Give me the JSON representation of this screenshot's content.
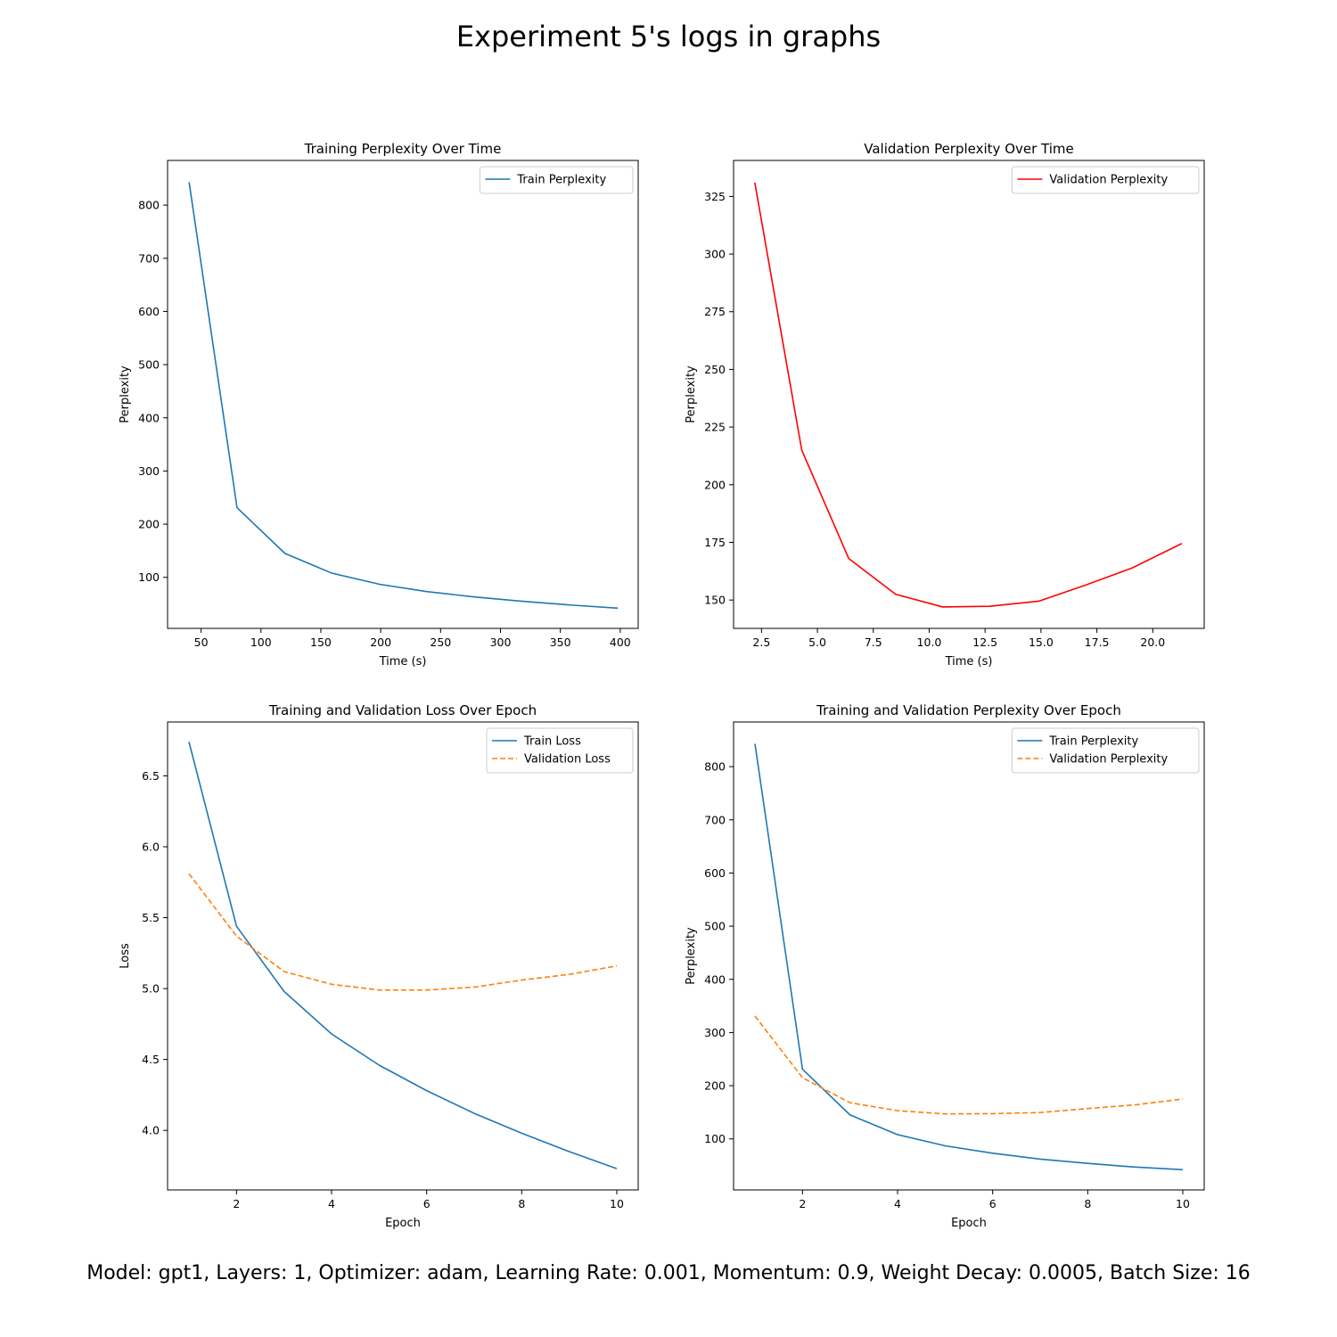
{
  "figure": {
    "title": "Experiment 5's logs in graphs",
    "footer": "Model: gpt1, Layers: 1, Optimizer: adam, Learning Rate: 0.001, Momentum: 0.9, Weight Decay: 0.0005, Batch Size: 16"
  },
  "colors": {
    "blue": "#1f77b4",
    "orange": "#ff7f0e",
    "red": "#ff0000"
  },
  "chart_data": [
    {
      "type": "line",
      "title": "Training Perplexity Over Time",
      "xlabel": "Time (s)",
      "ylabel": "Perplexity",
      "xlim": [
        22,
        415
      ],
      "ylim": [
        4,
        884
      ],
      "xticks": [
        50,
        100,
        150,
        200,
        250,
        300,
        350,
        400
      ],
      "xtick_labels": [
        "50",
        "100",
        "150",
        "200",
        "250",
        "300",
        "350",
        "400"
      ],
      "yticks": [
        100,
        200,
        300,
        400,
        500,
        600,
        700,
        800
      ],
      "ytick_labels": [
        "100",
        "200",
        "300",
        "400",
        "500",
        "600",
        "700",
        "800"
      ],
      "legend": "top-right",
      "series": [
        {
          "name": "Train Perplexity",
          "color": "#1f77b4",
          "dash": false,
          "x": [
            40,
            80,
            120,
            159,
            199,
            239,
            279,
            318,
            358,
            398
          ],
          "y": [
            843,
            231,
            145,
            108,
            87,
            73,
            63,
            55,
            48,
            42
          ]
        }
      ]
    },
    {
      "type": "line",
      "title": "Validation Perplexity Over Time",
      "xlabel": "Time (s)",
      "ylabel": "Perplexity",
      "xlim": [
        1.25,
        22.3
      ],
      "ylim": [
        137.7,
        340.6
      ],
      "xticks": [
        2.5,
        5.0,
        7.5,
        10.0,
        12.5,
        15.0,
        17.5,
        20.0
      ],
      "xtick_labels": [
        "2.5",
        "5.0",
        "7.5",
        "10.0",
        "12.5",
        "15.0",
        "17.5",
        "20.0"
      ],
      "yticks": [
        150,
        175,
        200,
        225,
        250,
        275,
        300,
        325
      ],
      "ytick_labels": [
        "150",
        "175",
        "200",
        "225",
        "250",
        "275",
        "300",
        "325"
      ],
      "legend": "top-right",
      "series": [
        {
          "name": "Validation Perplexity",
          "color": "#ff0000",
          "dash": false,
          "x": [
            2.2,
            4.3,
            6.4,
            8.5,
            10.6,
            12.7,
            14.9,
            17.0,
            19.1,
            21.3
          ],
          "y": [
            331,
            215,
            168,
            152.5,
            147,
            147.3,
            149.5,
            156.5,
            164,
            174.5
          ]
        }
      ]
    },
    {
      "type": "line",
      "title": "Training and Validation Loss Over Epoch",
      "xlabel": "Epoch",
      "ylabel": "Loss",
      "xlim": [
        0.55,
        10.45
      ],
      "ylim": [
        3.58,
        6.88
      ],
      "xticks": [
        2,
        4,
        6,
        8,
        10
      ],
      "xtick_labels": [
        "2",
        "4",
        "6",
        "8",
        "10"
      ],
      "yticks": [
        4.0,
        4.5,
        5.0,
        5.5,
        6.0,
        6.5
      ],
      "ytick_labels": [
        "4.0",
        "4.5",
        "5.0",
        "5.5",
        "6.0",
        "6.5"
      ],
      "legend": "top-right",
      "series": [
        {
          "name": "Train Loss",
          "color": "#1f77b4",
          "dash": false,
          "x": [
            1,
            2,
            3,
            4,
            5,
            6,
            7,
            8,
            9,
            10
          ],
          "y": [
            6.74,
            5.44,
            4.98,
            4.68,
            4.46,
            4.28,
            4.12,
            3.98,
            3.85,
            3.73
          ]
        },
        {
          "name": "Validation Loss",
          "color": "#ff7f0e",
          "dash": true,
          "x": [
            1,
            2,
            3,
            4,
            5,
            6,
            7,
            8,
            9,
            10
          ],
          "y": [
            5.81,
            5.37,
            5.12,
            5.03,
            4.99,
            4.99,
            5.01,
            5.06,
            5.1,
            5.16
          ]
        }
      ]
    },
    {
      "type": "line",
      "title": "Training and Validation Perplexity Over Epoch",
      "xlabel": "Epoch",
      "ylabel": "Perplexity",
      "xlim": [
        0.55,
        10.45
      ],
      "ylim": [
        4,
        884
      ],
      "xticks": [
        2,
        4,
        6,
        8,
        10
      ],
      "xtick_labels": [
        "2",
        "4",
        "6",
        "8",
        "10"
      ],
      "yticks": [
        100,
        200,
        300,
        400,
        500,
        600,
        700,
        800
      ],
      "ytick_labels": [
        "100",
        "200",
        "300",
        "400",
        "500",
        "600",
        "700",
        "800"
      ],
      "legend": "top-right",
      "series": [
        {
          "name": "Train Perplexity",
          "color": "#1f77b4",
          "dash": false,
          "x": [
            1,
            2,
            3,
            4,
            5,
            6,
            7,
            8,
            9,
            10
          ],
          "y": [
            843,
            231,
            145,
            108,
            87,
            73,
            62,
            54,
            47,
            42
          ]
        },
        {
          "name": "Validation Perplexity",
          "color": "#ff7f0e",
          "dash": true,
          "x": [
            1,
            2,
            3,
            4,
            5,
            6,
            7,
            8,
            9,
            10
          ],
          "y": [
            331,
            215,
            168,
            153,
            147,
            147.5,
            149.5,
            157,
            164,
            175
          ]
        }
      ]
    }
  ]
}
